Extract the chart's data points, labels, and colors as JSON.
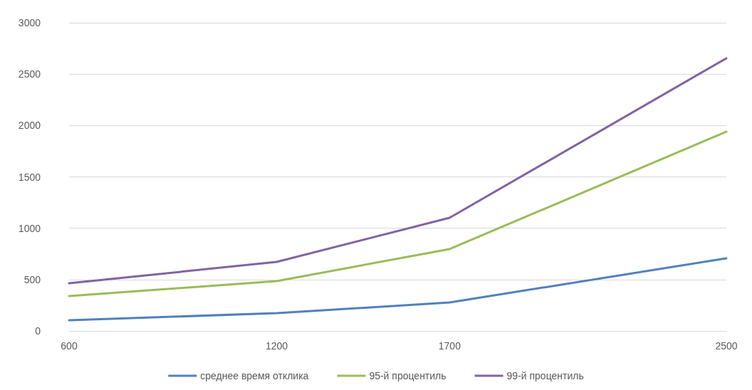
{
  "chart_data": {
    "type": "line",
    "x": [
      600,
      1200,
      1700,
      2500
    ],
    "xlim": [
      600,
      2500
    ],
    "xticks": [
      600,
      1200,
      1700,
      2500
    ],
    "ylim": [
      0,
      3000
    ],
    "yticks": [
      0,
      500,
      1000,
      1500,
      2000,
      2500,
      3000
    ],
    "grid": "y",
    "legend": "bottom",
    "marker": "none",
    "line_style": "solid",
    "series": [
      {
        "name": "среднее время отклика",
        "color": "#4f81bd",
        "values": [
          104,
          173,
          277,
          707
        ]
      },
      {
        "name": "95-й процентиль",
        "color": "#9bbb59",
        "values": [
          340,
          485,
          797,
          1940
        ]
      },
      {
        "name": "99-й процентиль",
        "color": "#8064a2",
        "values": [
          464,
          672,
          1102,
          2654
        ]
      }
    ]
  }
}
